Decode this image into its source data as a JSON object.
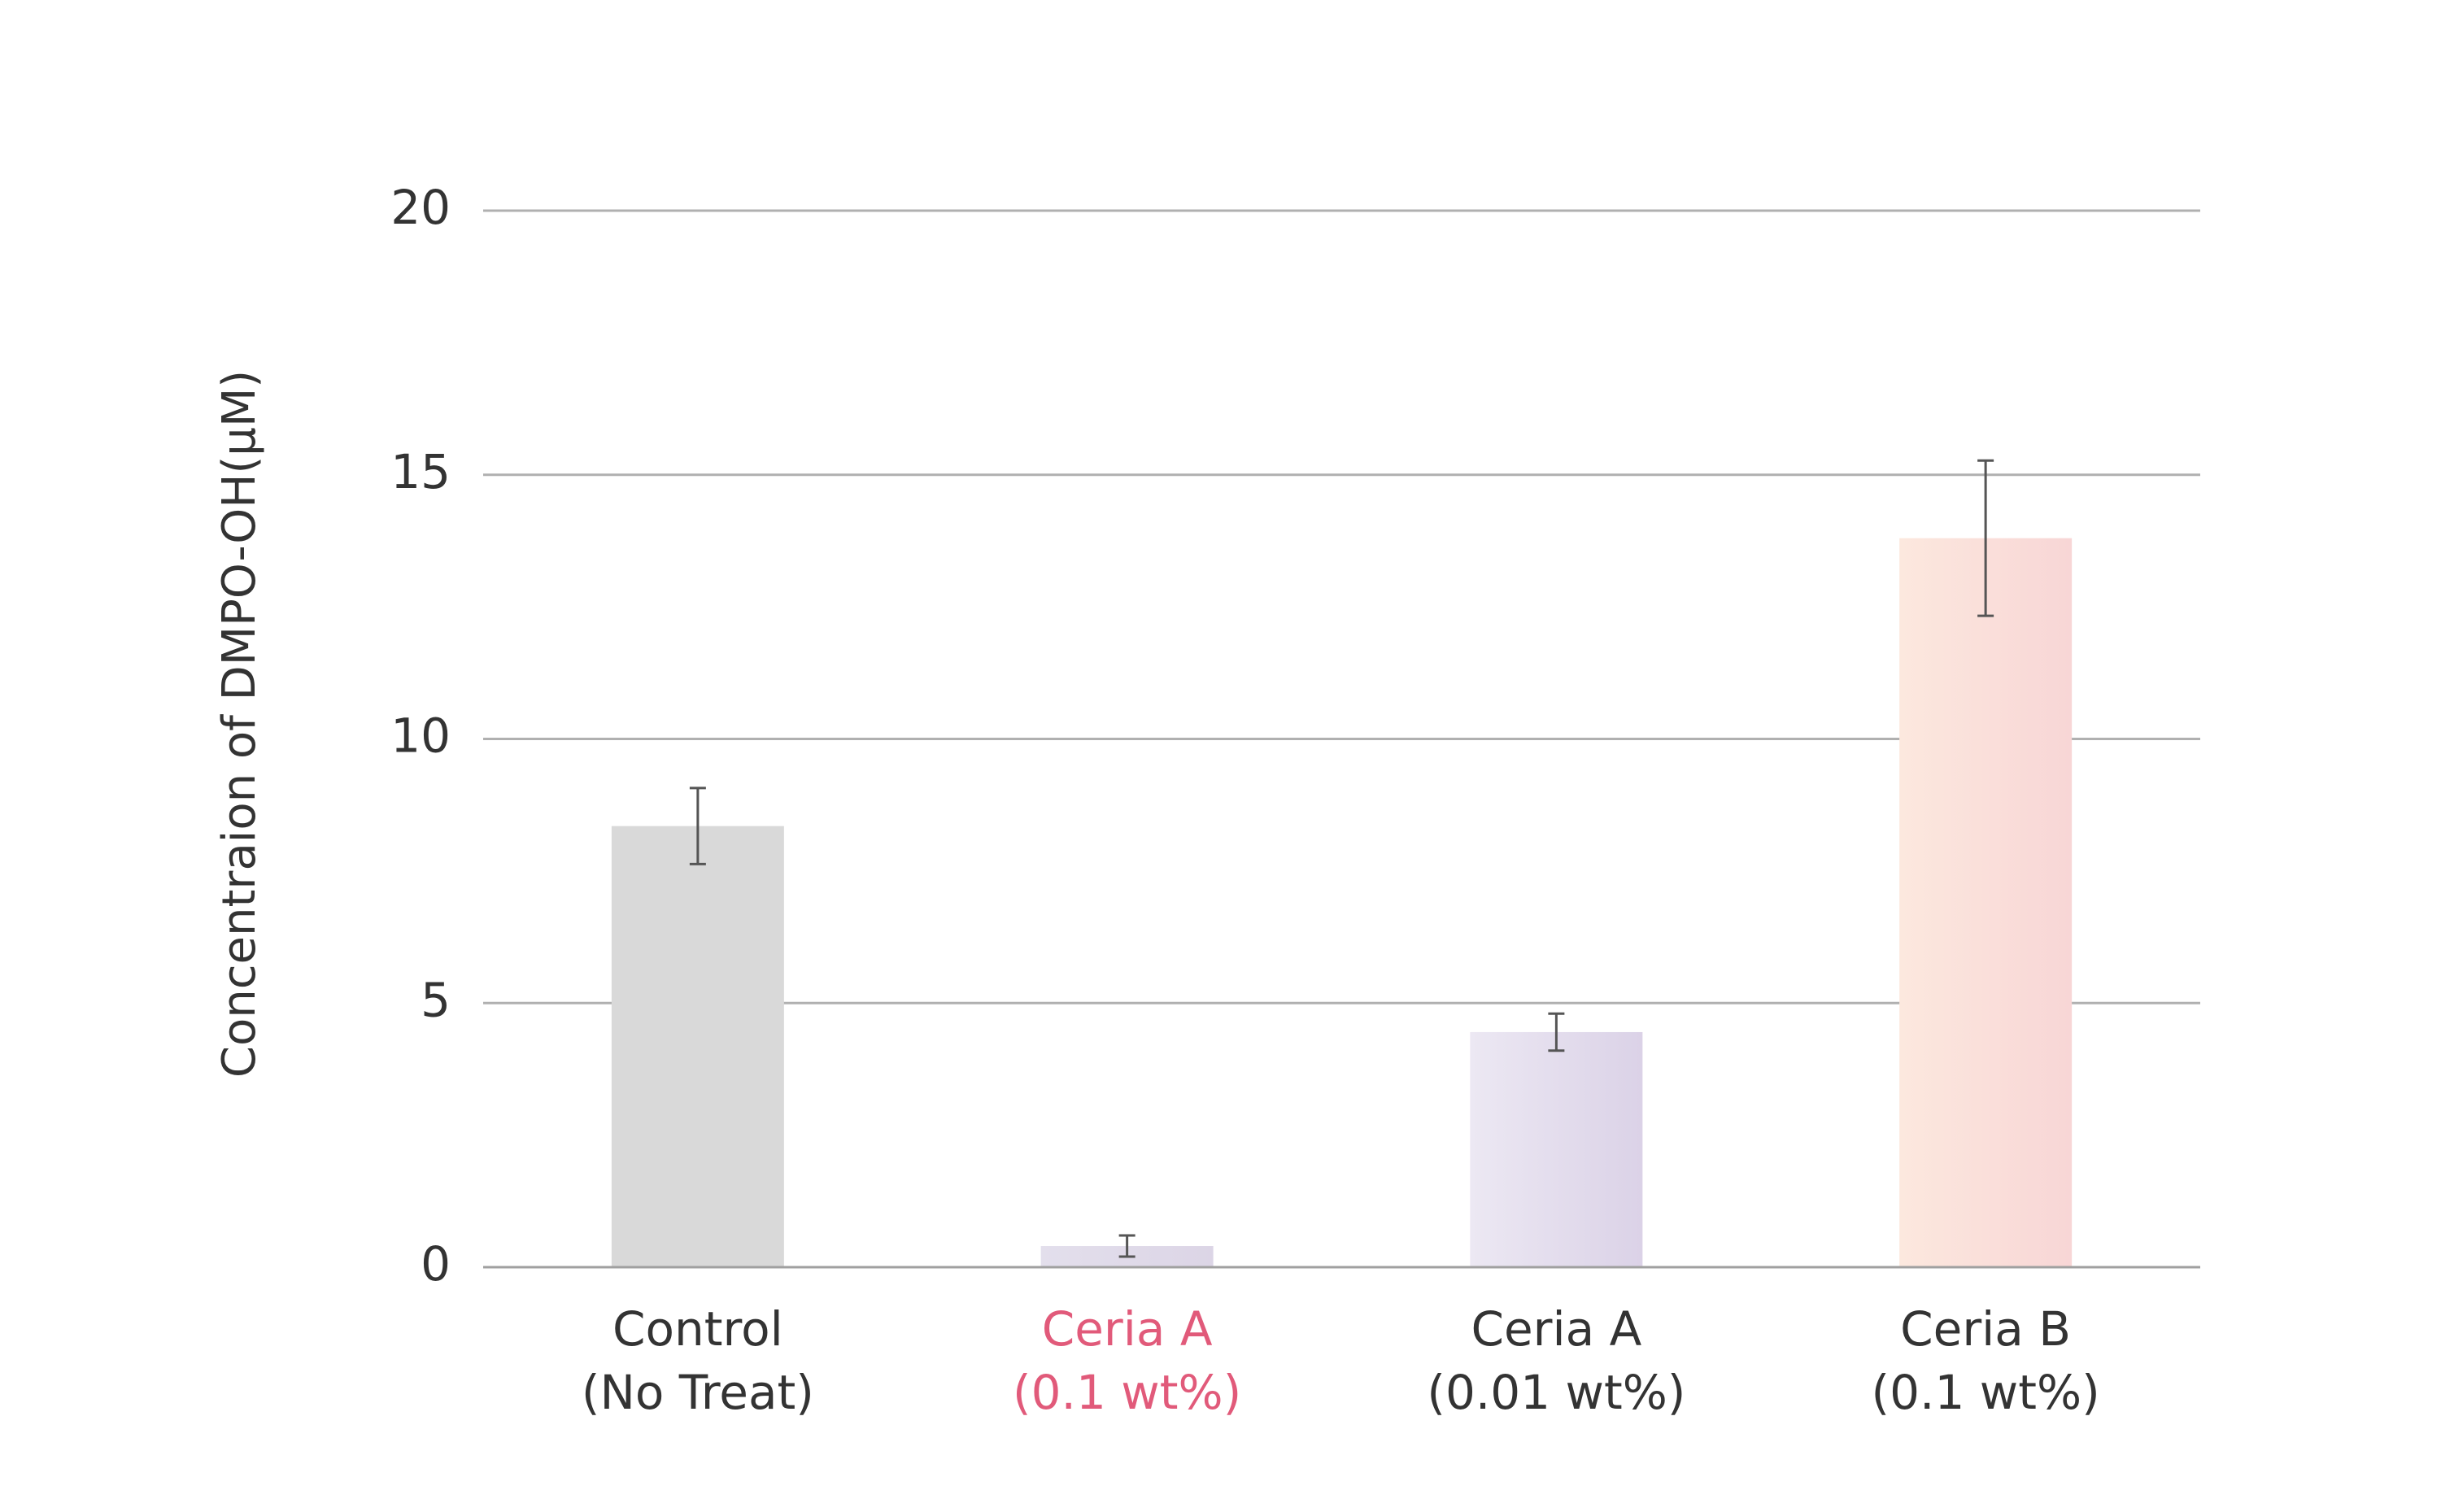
{
  "chart_data": {
    "type": "bar",
    "y_label": "Concentraion of DMPO-OH(μM)",
    "categories": [
      [
        "Control",
        "(No Treat)"
      ],
      [
        "Ceria A",
        "(0.1 wt%)"
      ],
      [
        "Ceria A",
        "(0.01 wt%)"
      ],
      [
        "Ceria B",
        "(0.1 wt%)"
      ]
    ],
    "values": [
      8.35,
      0.4,
      4.45,
      13.8
    ],
    "errors": [
      0.72,
      0.2,
      0.35,
      1.47
    ],
    "bar_gradients": [
      [
        "#d9d9d9",
        "#d9d9d9"
      ],
      [
        "#e3dfec",
        "#dcd5e6"
      ],
      [
        "#ece8f3",
        "#dbd2e7"
      ],
      [
        "#fce8de",
        "#f8d6d6"
      ]
    ],
    "label_colors": [
      "#333333",
      "#e15a7a",
      "#333333",
      "#333333"
    ],
    "ylim": [
      0,
      20
    ],
    "yticks": [
      0,
      5,
      10,
      15,
      20
    ],
    "grid": true
  }
}
